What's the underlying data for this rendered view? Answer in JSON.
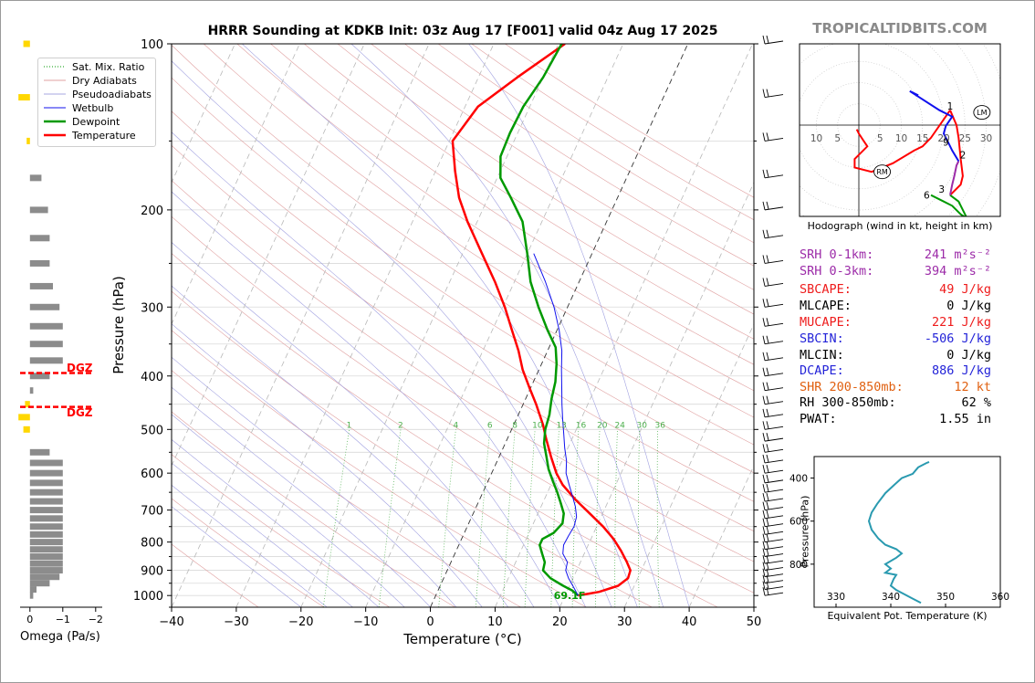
{
  "title": "HRRR Sounding at KDKB Init: 03z Aug 17 [F001] valid 04z Aug 17 2025",
  "brand": "TROPICALTIDBITS.COM",
  "colors": {
    "temperature": "#ff0000",
    "dewpoint": "#009900",
    "wetbulb": "#1010ee",
    "ept": "#2a9ab0",
    "dgz": "#ff0000",
    "omega_up": "#ffd700",
    "omega_down": "#8c8c8c"
  },
  "chart_data": [
    {
      "type": "line",
      "name": "skew-t",
      "xlabel": "Temperature (°C)",
      "ylabel": "Pressure (hPa)",
      "xlim": [
        -40,
        50
      ],
      "ylim": [
        1050,
        100
      ],
      "y_scale": "log",
      "x_ticks": [
        "−40",
        "−30",
        "−20",
        "−10",
        "0",
        "10",
        "20",
        "30",
        "40",
        "50"
      ],
      "y_ticks": [
        "100",
        "200",
        "300",
        "400",
        "500",
        "600",
        "700",
        "800",
        "900",
        "1000"
      ],
      "mixing_ratio_labels": [
        "1",
        "2",
        "4",
        "6",
        "8",
        "10",
        "13",
        "16",
        "20",
        "24",
        "30",
        "36"
      ],
      "legend": [
        "Sat. Mix. Ratio",
        "Dry Adiabats",
        "Pseudoadiabats",
        "Wetbulb",
        "Dewpoint",
        "Temperature"
      ],
      "surface_label": "69.1F",
      "series": [
        {
          "name": "Temperature",
          "points": [
            [
              1000,
              22
            ],
            [
              985,
              25
            ],
            [
              960,
              27.5
            ],
            [
              930,
              28.5
            ],
            [
              900,
              28.3
            ],
            [
              870,
              27.2
            ],
            [
              830,
              25.5
            ],
            [
              790,
              23.5
            ],
            [
              750,
              21
            ],
            [
              710,
              18
            ],
            [
              670,
              14.8
            ],
            [
              630,
              11.8
            ],
            [
              600,
              10
            ],
            [
              560,
              8
            ],
            [
              520,
              6
            ],
            [
              490,
              4.5
            ],
            [
              450,
              2
            ],
            [
              420,
              -0.2
            ],
            [
              390,
              -2.5
            ],
            [
              360,
              -4.5
            ],
            [
              330,
              -7
            ],
            [
              300,
              -9.7
            ],
            [
              270,
              -13
            ],
            [
              240,
              -17
            ],
            [
              210,
              -21.5
            ],
            [
              190,
              -24.5
            ],
            [
              170,
              -27
            ],
            [
              150,
              -29.5
            ],
            [
              130,
              -28
            ],
            [
              115,
              -24
            ],
            [
              100,
              -19
            ]
          ]
        },
        {
          "name": "Dewpoint",
          "points": [
            [
              1000,
              22
            ],
            [
              980,
              20.8
            ],
            [
              960,
              19
            ],
            [
              930,
              16.5
            ],
            [
              900,
              14.8
            ],
            [
              870,
              14.5
            ],
            [
              840,
              13.5
            ],
            [
              810,
              12.5
            ],
            [
              790,
              12.5
            ],
            [
              770,
              13.8
            ],
            [
              740,
              14.5
            ],
            [
              710,
              14
            ],
            [
              680,
              12.8
            ],
            [
              650,
              11.5
            ],
            [
              620,
              10
            ],
            [
              590,
              8.5
            ],
            [
              560,
              7.3
            ],
            [
              530,
              6
            ],
            [
              500,
              5.2
            ],
            [
              470,
              4.8
            ],
            [
              440,
              4
            ],
            [
              410,
              3.4
            ],
            [
              380,
              2.3
            ],
            [
              355,
              1
            ],
            [
              330,
              -1.5
            ],
            [
              300,
              -4.5
            ],
            [
              270,
              -7.5
            ],
            [
              240,
              -10
            ],
            [
              210,
              -13
            ],
            [
              190,
              -16.5
            ],
            [
              175,
              -19.5
            ],
            [
              160,
              -21
            ],
            [
              145,
              -21.2
            ],
            [
              130,
              -21
            ],
            [
              115,
              -20
            ],
            [
              100,
              -19.5
            ]
          ]
        },
        {
          "name": "Wetbulb",
          "points": [
            [
              1000,
              22
            ],
            [
              960,
              20.5
            ],
            [
              930,
              19.3
            ],
            [
              900,
              18.3
            ],
            [
              870,
              18
            ],
            [
              840,
              16.7
            ],
            [
              810,
              16.2
            ],
            [
              780,
              16.3
            ],
            [
              750,
              16.5
            ],
            [
              720,
              16.2
            ],
            [
              690,
              15.3
            ],
            [
              660,
              14.1
            ],
            [
              630,
              12.8
            ],
            [
              600,
              11.5
            ],
            [
              570,
              10.7
            ],
            [
              540,
              9.5
            ],
            [
              510,
              8.4
            ],
            [
              480,
              7.2
            ],
            [
              450,
              6
            ],
            [
              420,
              4.8
            ],
            [
              390,
              3.5
            ],
            [
              360,
              2.2
            ],
            [
              330,
              0.3
            ],
            [
              300,
              -2.1
            ],
            [
              270,
              -5.2
            ],
            [
              240,
              -9
            ]
          ]
        }
      ]
    },
    {
      "type": "bar",
      "name": "omega",
      "xlabel": "Omega (Pa/s)",
      "xlim": [
        0.3,
        -2.2
      ],
      "x_ticks": [
        "0",
        "−1",
        "−2"
      ],
      "dgz_label": "DGZ",
      "dgz_levels": [
        395,
        455
      ],
      "bars": [
        [
          100,
          0.2
        ],
        [
          125,
          0.35
        ],
        [
          150,
          0.1
        ],
        [
          175,
          -0.35
        ],
        [
          200,
          -0.55
        ],
        [
          225,
          -0.6
        ],
        [
          250,
          -0.6
        ],
        [
          275,
          -0.7
        ],
        [
          300,
          -0.9
        ],
        [
          325,
          -1
        ],
        [
          350,
          -1
        ],
        [
          375,
          -1
        ],
        [
          400,
          -0.6
        ],
        [
          425,
          -0.1
        ],
        [
          450,
          0.15
        ],
        [
          475,
          0.35
        ],
        [
          500,
          0.2
        ],
        [
          550,
          -0.6
        ],
        [
          575,
          -1
        ],
        [
          600,
          -1
        ],
        [
          625,
          -1
        ],
        [
          650,
          -1
        ],
        [
          675,
          -1
        ],
        [
          700,
          -1
        ],
        [
          725,
          -1
        ],
        [
          750,
          -1
        ],
        [
          775,
          -1
        ],
        [
          800,
          -1
        ],
        [
          825,
          -1
        ],
        [
          850,
          -1
        ],
        [
          875,
          -1
        ],
        [
          900,
          -1
        ],
        [
          925,
          -0.9
        ],
        [
          950,
          -0.6
        ],
        [
          975,
          -0.2
        ],
        [
          1000,
          -0.1
        ]
      ]
    },
    {
      "type": "line",
      "name": "hodograph",
      "caption": "Hodograph (wind in kt, height in km)",
      "x_tick_labels": [
        "10",
        "5",
        "5",
        "10",
        "15",
        "20",
        "25",
        "30"
      ],
      "height_labels": [
        "1",
        "2",
        "3",
        "6",
        "9"
      ],
      "markers": [
        "LM",
        "RM"
      ],
      "series": [
        {
          "name": "0-1km",
          "color": "#ff0000",
          "points": [
            [
              -0.5,
              -1
            ],
            [
              0,
              -2
            ],
            [
              1,
              -3.5
            ],
            [
              2,
              -5
            ],
            [
              0,
              -7
            ],
            [
              -1,
              -8
            ],
            [
              -1,
              -10
            ],
            [
              3,
              -11
            ],
            [
              8,
              -9
            ],
            [
              13,
              -6
            ],
            [
              15,
              -5
            ],
            [
              17,
              -3
            ],
            [
              21.5,
              3.5
            ]
          ]
        },
        {
          "name": "1-3km",
          "color": "#ff0000",
          "points": [
            [
              21.5,
              3.5
            ],
            [
              23,
              0
            ],
            [
              23.5,
              -3
            ],
            [
              24,
              -8
            ],
            [
              24.5,
              -12
            ],
            [
              24,
              -14
            ],
            [
              21.5,
              -16.5
            ]
          ]
        },
        {
          "name": "3-6km",
          "color": "#009900",
          "points": [
            [
              21.5,
              -16.5
            ],
            [
              23.5,
              -18
            ],
            [
              25,
              -21
            ],
            [
              25.5,
              -22
            ],
            [
              24,
              -21
            ],
            [
              22,
              -19
            ],
            [
              20,
              -18
            ],
            [
              17,
              -16.5
            ]
          ]
        },
        {
          "name": "6-9km",
          "color": "#9c2ba8",
          "points": [
            [
              21.5,
              -16.5
            ],
            [
              22,
              -14
            ],
            [
              22.5,
              -12
            ],
            [
              23,
              -9.5
            ],
            [
              23.5,
              -8.5
            ]
          ]
        },
        {
          "name": "9-12km",
          "color": "#1010ee",
          "points": [
            [
              23.5,
              -8.5
            ],
            [
              22,
              -6
            ],
            [
              21,
              -4
            ],
            [
              20,
              -2
            ],
            [
              20.5,
              -0.2
            ],
            [
              22,
              2
            ],
            [
              19,
              3.5
            ],
            [
              12,
              8
            ],
            [
              14,
              7
            ]
          ]
        }
      ]
    },
    {
      "type": "line",
      "name": "equivalent-potential-temperature",
      "xlabel": "Equivalent Pot. Temperature (K)",
      "ylabel": "Pressure (hPa)",
      "x_ticks": [
        "330",
        "340",
        "350",
        "360"
      ],
      "y_ticks": [
        "400",
        "600",
        "800"
      ],
      "xlim": [
        326,
        360
      ],
      "ylim": [
        1000,
        300
      ],
      "points": [
        [
          325,
          347
        ],
        [
          330,
          346.5
        ],
        [
          350,
          345
        ],
        [
          380,
          344
        ],
        [
          400,
          342
        ],
        [
          430,
          340.7
        ],
        [
          470,
          339
        ],
        [
          520,
          337.5
        ],
        [
          560,
          336.5
        ],
        [
          600,
          336
        ],
        [
          640,
          336.5
        ],
        [
          680,
          337.7
        ],
        [
          710,
          339
        ],
        [
          730,
          341
        ],
        [
          750,
          342
        ],
        [
          770,
          341
        ],
        [
          800,
          339
        ],
        [
          820,
          340
        ],
        [
          840,
          339
        ],
        [
          850,
          341
        ],
        [
          870,
          340.5
        ],
        [
          900,
          340
        ],
        [
          920,
          341
        ],
        [
          940,
          342.5
        ],
        [
          960,
          344
        ],
        [
          980,
          345.5
        ]
      ]
    }
  ],
  "stats": [
    {
      "label": "SRH 0-1km:",
      "value": "241 m²s⁻²",
      "color": "#9c2ba8"
    },
    {
      "label": "SRH 0-3km:",
      "value": "394 m²s⁻²",
      "color": "#9c2ba8"
    },
    {
      "label": "SBCAPE:",
      "value": "49 J/kg",
      "color": "#ee1c1c"
    },
    {
      "label": "MLCAPE:",
      "value": "0 J/kg",
      "color": "#000000"
    },
    {
      "label": "MUCAPE:",
      "value": "221 J/kg",
      "color": "#ee1c1c"
    },
    {
      "label": "SBCIN:",
      "value": "-506 J/kg",
      "color": "#2323d8"
    },
    {
      "label": "MLCIN:",
      "value": "0 J/kg",
      "color": "#000000"
    },
    {
      "label": "DCAPE:",
      "value": "886 J/kg",
      "color": "#2323d8"
    },
    {
      "label": "SHR 200-850mb:",
      "value": "12 kt",
      "color": "#e06010"
    },
    {
      "label": "RH 300-850mb:",
      "value": "62 %",
      "color": "#000000"
    },
    {
      "label": "PWAT:",
      "value": "1.55 in",
      "color": "#000000"
    }
  ]
}
